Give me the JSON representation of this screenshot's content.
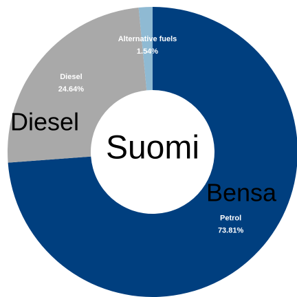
{
  "chart_data": {
    "type": "donut",
    "categories": [
      "Petrol",
      "Diesel",
      "Alternative fuels"
    ],
    "values": [
      73.81,
      24.64,
      1.54
    ],
    "value_labels": [
      "73.81%",
      "24.64%",
      "1.54%"
    ],
    "colors": [
      "#003f7f",
      "#a9a9a9",
      "#8fbad3"
    ],
    "annotations": [
      "Suomi",
      "Diesel",
      "Bensa"
    ]
  }
}
